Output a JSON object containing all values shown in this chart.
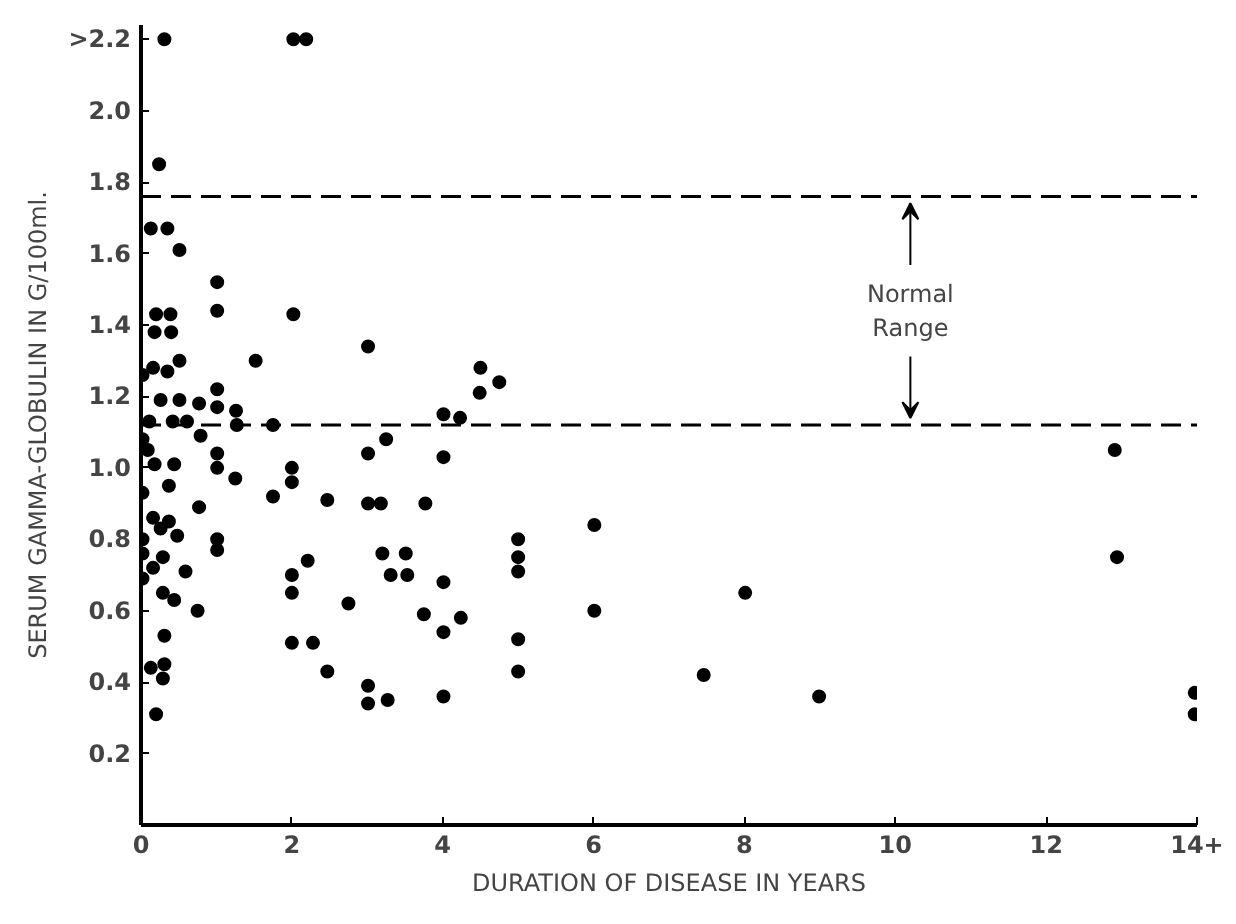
{
  "chart_data": {
    "type": "scatter",
    "xlabel": "DURATION OF DISEASE IN YEARS",
    "ylabel": "SERUM GAMMA-GLOBULIN IN G/100ml.",
    "xlim": [
      0,
      14
    ],
    "ylim": [
      0,
      2.24
    ],
    "xticks": [
      0,
      2,
      4,
      6,
      8,
      10,
      12,
      {
        "value": 14,
        "label": "14+"
      }
    ],
    "yticks": [
      0.2,
      0.4,
      0.6,
      0.8,
      {
        "value": 1.0,
        "label": "1.0"
      },
      1.2,
      1.4,
      1.6,
      1.8,
      {
        "value": 2.0,
        "label": "2.0"
      },
      {
        "value": 2.2,
        "label": ">2.2"
      }
    ],
    "grid": false,
    "marker": "circle",
    "ref_lines": [
      {
        "axis": "y",
        "value": 1.76,
        "color": "#000000",
        "line_style": "dashed"
      },
      {
        "axis": "y",
        "value": 1.12,
        "color": "#000000",
        "line_style": "dashed"
      }
    ],
    "annotations": [
      {
        "text": "Normal Range",
        "x": 10.2,
        "y": 1.76
      }
    ],
    "series": [
      {
        "color": "#000000",
        "x": [
          0.31,
          2.02,
          2.19,
          0.24,
          0.13,
          0.35,
          0.51,
          1.01,
          1.01,
          2.02,
          0.2,
          0.39,
          0.18,
          0.4,
          0.16,
          0.35,
          0.51,
          0.02,
          1.52,
          0.26,
          0.51,
          0.77,
          1.01,
          1.01,
          1.26,
          0.11,
          0.42,
          0.61,
          0.79,
          1.27,
          1.75,
          0.02,
          0.09,
          1.01,
          0.18,
          0.44,
          1.01,
          1.25,
          1.75,
          2.0,
          2.0,
          2.47,
          0.02,
          0.37,
          0.77,
          0.16,
          0.37,
          0.26,
          0.48,
          0.02,
          0.02,
          1.01,
          1.01,
          0.29,
          0.16,
          0.59,
          0.02,
          0.29,
          0.44,
          0.75,
          0.31,
          0.13,
          0.31,
          0.29,
          0.2,
          2.0,
          2.0,
          2.21,
          2.0,
          2.28,
          2.47,
          3.01,
          4.5,
          4.75,
          4.49,
          4.01,
          4.23,
          3.25,
          3.01,
          4.01,
          3.01,
          3.18,
          3.77,
          3.2,
          3.51,
          3.31,
          3.53,
          4.01,
          2.75,
          3.75,
          4.24,
          4.01,
          3.01,
          3.01,
          3.27,
          4.01,
          5.0,
          5.0,
          5.0,
          5.0,
          5.0,
          6.01,
          6.01,
          8.01,
          7.46,
          8.99,
          12.91,
          12.94,
          13.97,
          13.97
        ],
        "values": [
          2.2,
          2.2,
          2.2,
          1.85,
          1.67,
          1.67,
          1.61,
          1.52,
          1.44,
          1.43,
          1.43,
          1.43,
          1.38,
          1.38,
          1.28,
          1.27,
          1.3,
          1.26,
          1.3,
          1.19,
          1.19,
          1.18,
          1.22,
          1.17,
          1.16,
          1.13,
          1.13,
          1.13,
          1.09,
          1.12,
          1.12,
          1.08,
          1.05,
          1.04,
          1.01,
          1.01,
          1.0,
          0.97,
          0.92,
          1.0,
          0.96,
          0.91,
          0.93,
          0.95,
          0.89,
          0.86,
          0.85,
          0.83,
          0.81,
          0.8,
          0.76,
          0.8,
          0.77,
          0.75,
          0.72,
          0.71,
          0.69,
          0.65,
          0.63,
          0.6,
          0.53,
          0.44,
          0.45,
          0.41,
          0.31,
          0.7,
          0.65,
          0.74,
          0.51,
          0.51,
          0.43,
          1.34,
          1.28,
          1.24,
          1.21,
          1.15,
          1.14,
          1.08,
          1.04,
          1.03,
          0.9,
          0.9,
          0.9,
          0.76,
          0.76,
          0.7,
          0.7,
          0.68,
          0.62,
          0.59,
          0.58,
          0.54,
          0.39,
          0.34,
          0.35,
          0.36,
          0.8,
          0.75,
          0.71,
          0.52,
          0.43,
          0.84,
          0.6,
          0.65,
          0.42,
          0.36,
          1.05,
          0.75,
          0.37,
          0.31
        ]
      }
    ]
  }
}
